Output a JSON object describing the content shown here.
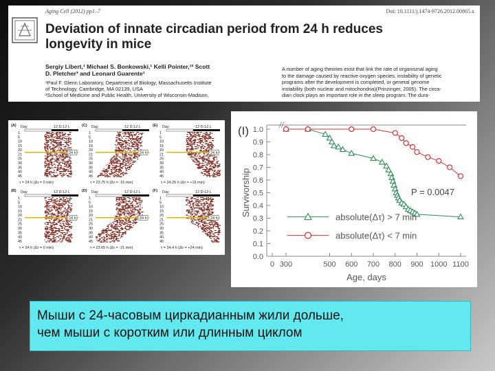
{
  "paper": {
    "journal": "Aging Cell (2012) pp1–7",
    "doi": "Doi: 10.1111/j.1474-9726.2012.00865.x",
    "title_line1": "Deviation of innate circadian period from 24 h reduces",
    "title_line2": "longevity in mice",
    "authors_line1": "Sergiy Libert,¹ Michael S. Bonkowski,¹ Kelli Pointer,¹² Scott",
    "authors_line2": "D. Pletcher³ and Leonard Guarente¹",
    "affil_line1": "¹Paul F. Glenn Laboratory, Department of Biology, Massachusetts Institute",
    "affil_line2": "of Technology, Cambridge, MA 02139, USA",
    "affil_line3": "²School of Medicine and Public Health, University of Wisconsin-Madison,",
    "abstract_line1": "A number of aging theories exist that link the rate of organismal aging",
    "abstract_line2": "to the damage caused by reactive oxygen species, instability of genetic",
    "abstract_line3": "programs after the development is completed, or general genome",
    "abstract_line4": "instability (both nuclear and mitochondria)(Prinzinger, 2005). The circa-",
    "abstract_line5": "dian clock plays an important role in the sleep program. The dura-"
  },
  "actograms": {
    "day_label": "Day",
    "day_ticks": [
      "1",
      "5",
      "10",
      "15",
      "20",
      "21",
      "25",
      "30",
      "35",
      "40",
      "45"
    ],
    "light_label": "12 D:12 L",
    "marker_label": "24 h",
    "panels": [
      {
        "letter": "(A)",
        "caption": "τ = 24 h (Δτ = 0 min)"
      },
      {
        "letter": "(C)",
        "caption": "τ = 23.75 h (Δτ = -15 min)"
      },
      {
        "letter": "(E)",
        "caption": "τ = 24.25 h (Δτ = +15 min)"
      },
      {
        "letter": "(B)",
        "caption": "τ = 24 h (Δτ = 0 min)"
      },
      {
        "letter": "(D)",
        "caption": "τ = 23.65 h (Δτ = -21 min)"
      },
      {
        "letter": "(F)",
        "caption": "τ = 24.4 h (Δτ = +24 min)"
      }
    ]
  },
  "chart_data": {
    "type": "line",
    "panel_label": "(I)",
    "xlabel": "Age, days",
    "ylabel": "Survivorship",
    "x_ticks": [
      "0",
      "300",
      "500",
      "600",
      "700",
      "800",
      "900",
      "1000",
      "1100"
    ],
    "y_ticks": [
      "0.0",
      "0.1",
      "0.2",
      "0.3",
      "0.4",
      "0.5",
      "0.6",
      "0.7",
      "0.8",
      "0.9",
      "1.0"
    ],
    "xlim": [
      0,
      1100
    ],
    "ylim": [
      0,
      1.0
    ],
    "axis_break": "//",
    "annotation": "P = 0.0047",
    "series": [
      {
        "name": "absolute(Δτ) > 7 min",
        "marker": "triangle",
        "color": "#2e8b57",
        "x": [
          300,
          400,
          480,
          500,
          510,
          520,
          540,
          560,
          600,
          700,
          740,
          760,
          770,
          780,
          785,
          790,
          795,
          800,
          805,
          810,
          815,
          820,
          830,
          840,
          850,
          860,
          870,
          880,
          890,
          900,
          1100
        ],
        "y": [
          1.0,
          1.0,
          0.96,
          0.93,
          0.9,
          0.87,
          0.86,
          0.84,
          0.81,
          0.77,
          0.74,
          0.71,
          0.68,
          0.65,
          0.62,
          0.59,
          0.56,
          0.53,
          0.5,
          0.48,
          0.46,
          0.44,
          0.42,
          0.41,
          0.39,
          0.37,
          0.36,
          0.35,
          0.34,
          0.33,
          0.31
        ]
      },
      {
        "name": "absolute(Δτ) < 7 min",
        "marker": "circle",
        "color": "#d93030",
        "x": [
          300,
          400,
          600,
          700,
          800,
          830,
          850,
          880,
          900,
          950,
          1000,
          1050,
          1100
        ],
        "y": [
          1.0,
          1.0,
          1.0,
          1.0,
          0.97,
          0.93,
          0.89,
          0.86,
          0.82,
          0.78,
          0.75,
          0.7,
          0.63
        ]
      }
    ]
  },
  "caption": {
    "line1": "Мыши с 24-часовым циркадианным жили дольше,",
    "line2": "чем мыши с коротким или длинным циклом"
  }
}
